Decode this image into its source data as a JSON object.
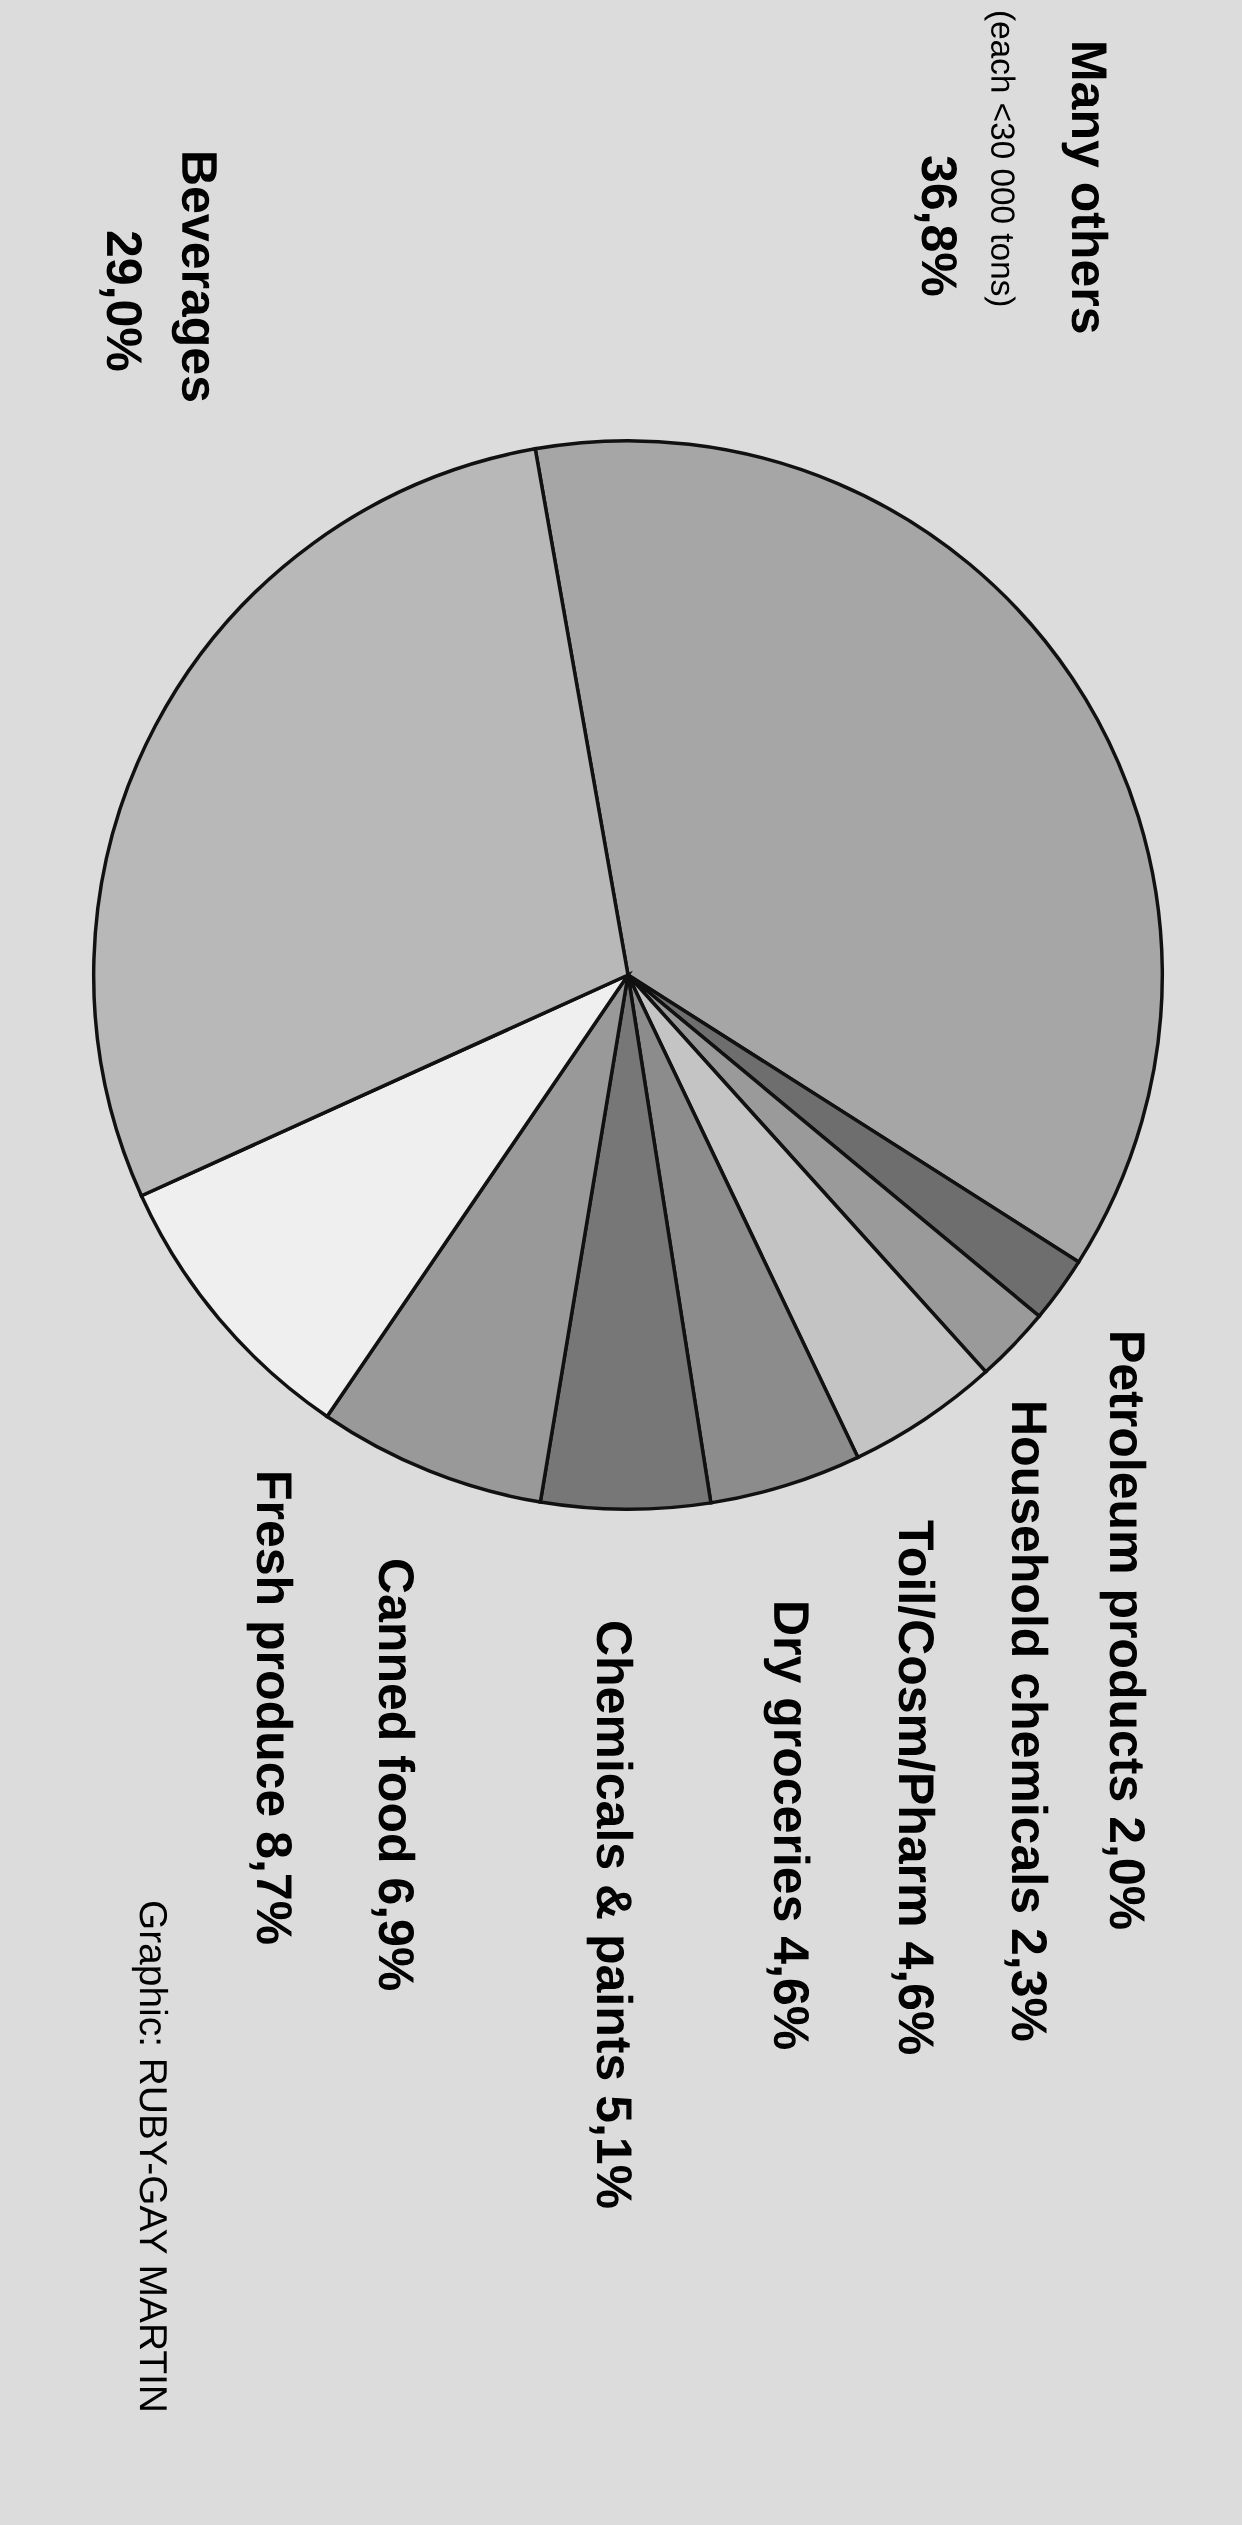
{
  "chart_data": {
    "type": "pie",
    "categories": [
      "Many others",
      "Petroleum products",
      "Household chemicals",
      "Toil/Cosm/Pharm",
      "Dry groceries",
      "Chemicals & paints",
      "Canned food",
      "Fresh produce",
      "Beverages"
    ],
    "values": [
      36.8,
      2.0,
      2.3,
      4.6,
      4.6,
      5.1,
      6.9,
      8.7,
      29.0
    ],
    "value_labels": [
      "36,8%",
      "2,0%",
      "2,3%",
      "4,6%",
      "4,6%",
      "5,1%",
      "6,9%",
      "8,7%",
      "29,0%"
    ],
    "colors": [
      "#a6a6a6",
      "#6e6e6e",
      "#9a9a9a",
      "#c4c4c4",
      "#8c8c8c",
      "#777777",
      "#999999",
      "#efefef",
      "#b8b8b8"
    ],
    "annotations": [
      "(each <30 000 tons)",
      "Graphic: RUBY-GAY MARTIN"
    ]
  }
}
